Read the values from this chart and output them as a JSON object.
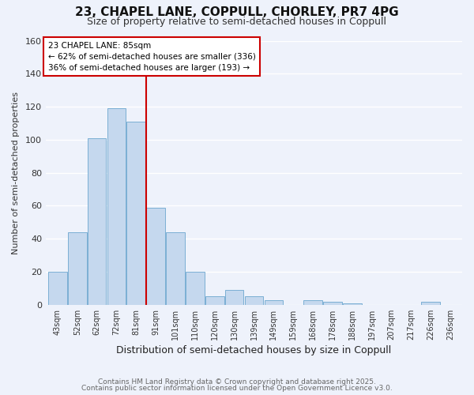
{
  "title": "23, CHAPEL LANE, COPPULL, CHORLEY, PR7 4PG",
  "subtitle": "Size of property relative to semi-detached houses in Coppull",
  "xlabel": "Distribution of semi-detached houses by size in Coppull",
  "ylabel": "Number of semi-detached properties",
  "categories": [
    "43sqm",
    "52sqm",
    "62sqm",
    "72sqm",
    "81sqm",
    "91sqm",
    "101sqm",
    "110sqm",
    "120sqm",
    "130sqm",
    "139sqm",
    "149sqm",
    "159sqm",
    "168sqm",
    "178sqm",
    "188sqm",
    "197sqm",
    "207sqm",
    "217sqm",
    "226sqm",
    "236sqm"
  ],
  "values": [
    20,
    44,
    101,
    119,
    111,
    59,
    44,
    20,
    5,
    9,
    5,
    3,
    0,
    3,
    2,
    1,
    0,
    0,
    0,
    2,
    0
  ],
  "bar_color": "#c5d8ee",
  "bar_edge_color": "#7bafd4",
  "background_color": "#eef2fb",
  "grid_color": "#ffffff",
  "vline_color": "#cc0000",
  "annotation_title": "23 CHAPEL LANE: 85sqm",
  "annotation_line1": "← 62% of semi-detached houses are smaller (336)",
  "annotation_line2": "36% of semi-detached houses are larger (193) →",
  "annotation_box_color": "#ffffff",
  "annotation_box_edge": "#cc0000",
  "ylim": [
    0,
    160
  ],
  "yticks": [
    0,
    20,
    40,
    60,
    80,
    100,
    120,
    140,
    160
  ],
  "footer1": "Contains HM Land Registry data © Crown copyright and database right 2025.",
  "footer2": "Contains public sector information licensed under the Open Government Licence v3.0."
}
